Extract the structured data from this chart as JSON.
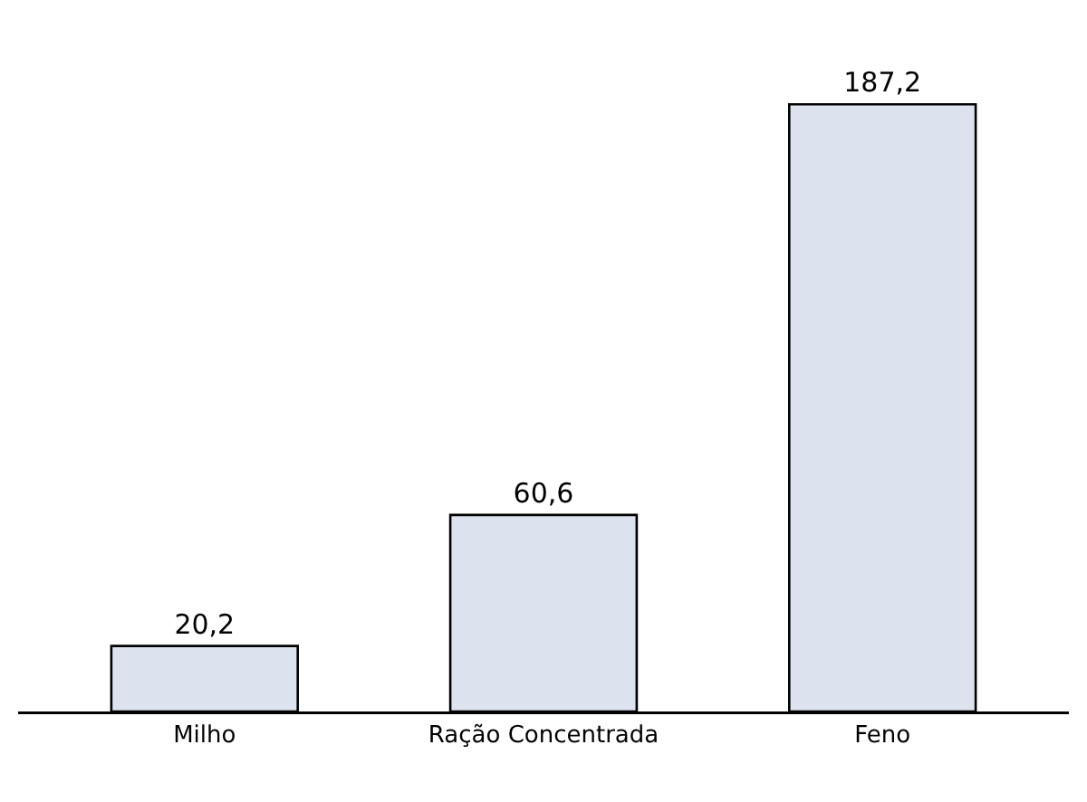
{
  "chart_data": {
    "type": "bar",
    "categories": [
      "Milho",
      "Ração Concentrada",
      "Feno"
    ],
    "values": [
      20.2,
      60.6,
      187.2
    ],
    "value_labels": [
      "20,2",
      "60,6",
      "187,2"
    ],
    "color": "#dce3ee",
    "tick_labels": "x",
    "grid": false,
    "legend": false
  }
}
